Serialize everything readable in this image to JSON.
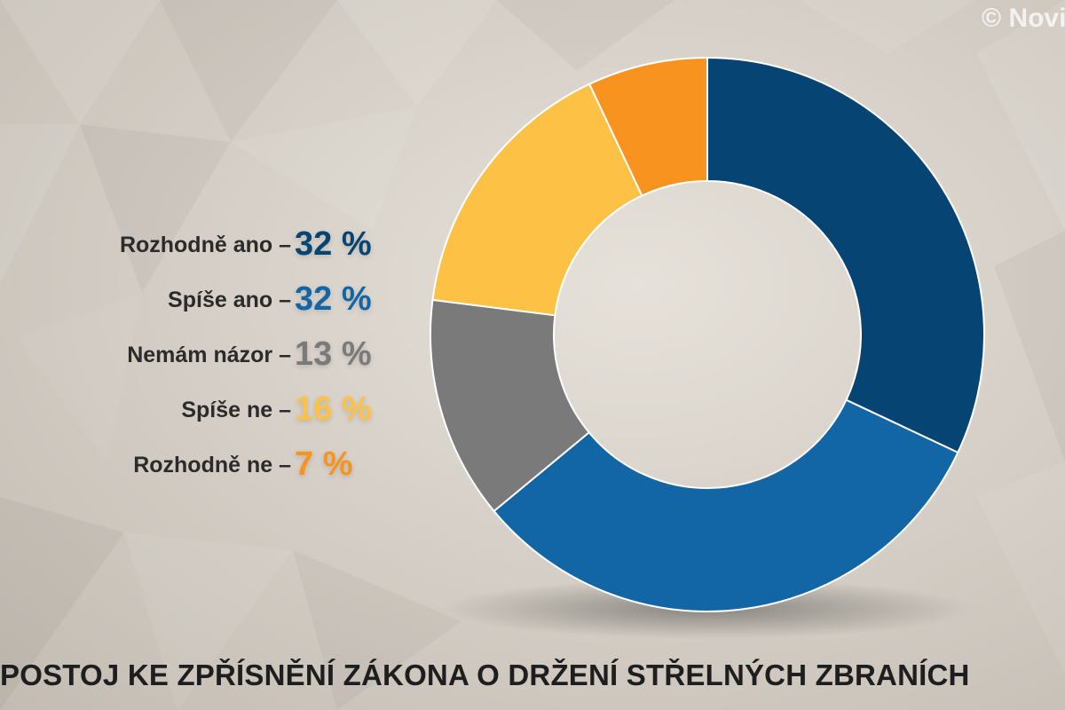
{
  "watermark": "© Novi",
  "chart_data": {
    "type": "pie",
    "title": "POSTOJ KE ZPŘÍSNĚNÍ ZÁKONA O DRŽENÍ STŘELNÝCH ZBRANÍCH",
    "categories": [
      "Rozhodně ano",
      "Spíše ano",
      "Nemám názor",
      "Spíše ne",
      "Rozhodně ne"
    ],
    "values": [
      32,
      32,
      13,
      16,
      7
    ],
    "value_labels": [
      "32 %",
      "32 %",
      "13 %",
      "16 %",
      "7 %"
    ],
    "colors": [
      "#064573",
      "#1266a5",
      "#7a7a7a",
      "#fdc146",
      "#f7931e"
    ],
    "label_separator": "–",
    "legend_position": "left",
    "grid": false
  }
}
